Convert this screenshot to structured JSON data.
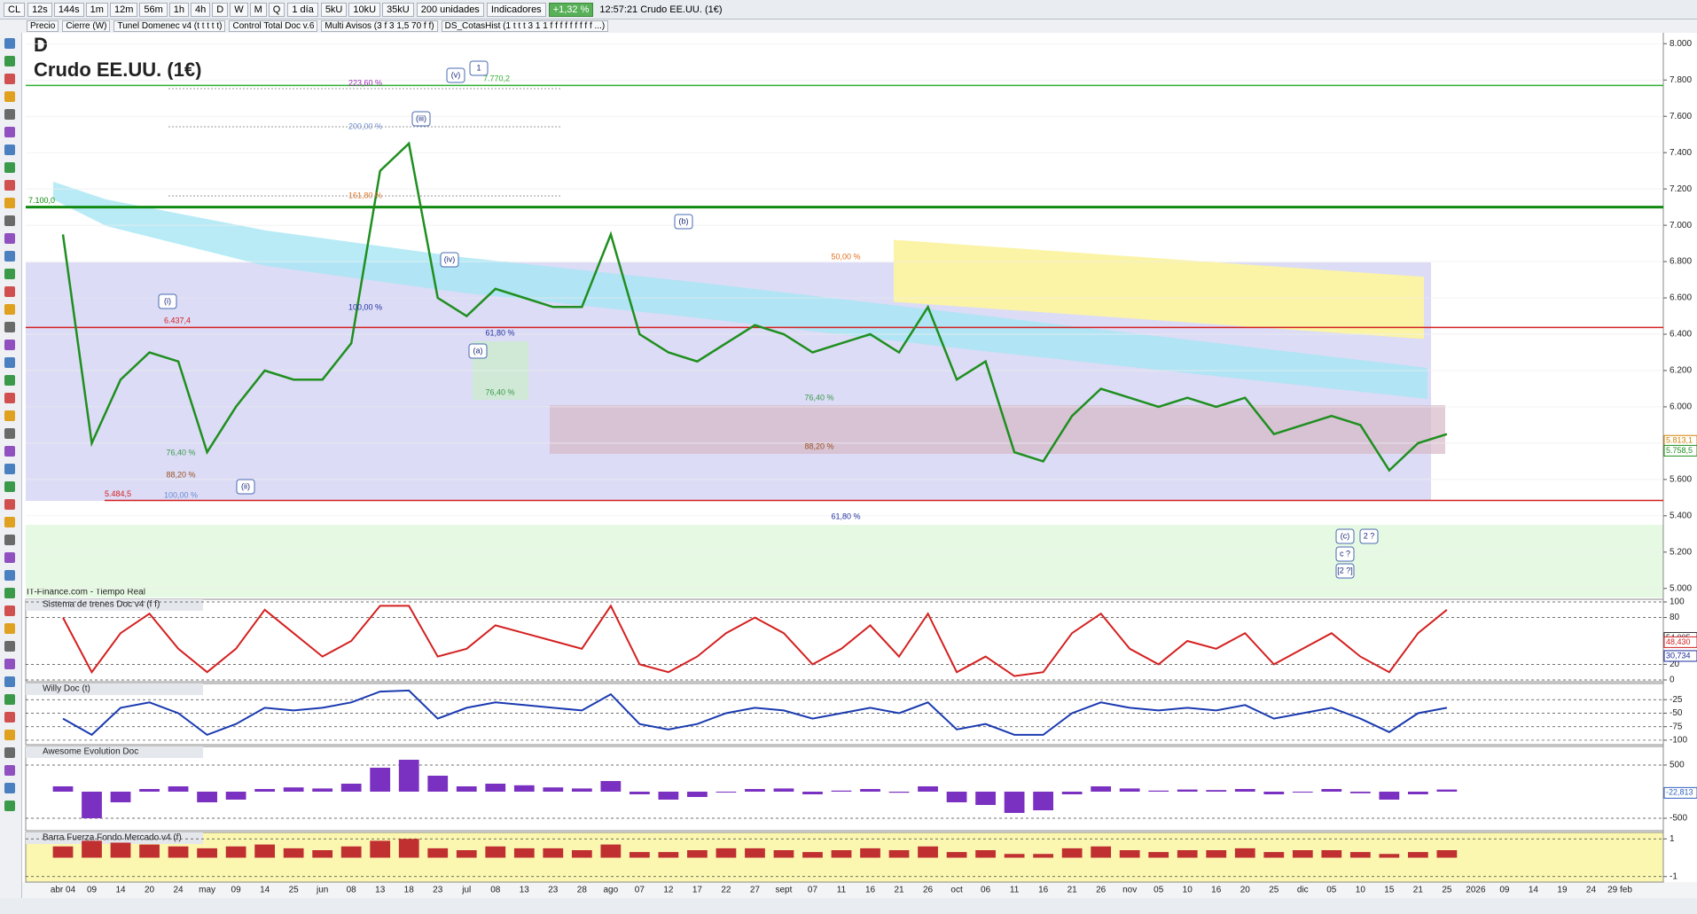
{
  "toolbar": {
    "symbol": "CL",
    "intervals": [
      "12s",
      "144s",
      "1m",
      "12m",
      "56m",
      "1h",
      "4h",
      "D",
      "W",
      "M",
      "Q"
    ],
    "period": "1 día",
    "units": [
      "5kU",
      "10kU",
      "35kU"
    ],
    "amount": "200 unidades",
    "indicators": "Indicadores",
    "change": "+1,32 %",
    "status": "12:57:21 Crudo EE.UU. (1€)"
  },
  "indicator_tabs": [
    "Precio",
    "Cierre (W)",
    "Tunel Domenec v4 (t t t t t)",
    "Control Total Doc v.6",
    "Multi Avisos (3 f 3 1,5 70 f f)",
    "DS_CotasHist (1 t t t 3 1 1 f f f f f f f f f ...)"
  ],
  "chart_data": [
    {
      "type": "line",
      "subtitle": "D",
      "title": "Crudo EE.UU. (1€)",
      "source": "IT-Finance.com - Tiempo Real",
      "color": "#1f8f1f",
      "categories": [
        "abr 04",
        "09",
        "14",
        "20",
        "24",
        "may",
        "09",
        "14",
        "25",
        "jun",
        "08",
        "13",
        "18",
        "23",
        "jul",
        "08",
        "13",
        "23",
        "28",
        "ago",
        "07",
        "12",
        "17",
        "22",
        "27",
        "sept",
        "07",
        "11",
        "16",
        "21",
        "26",
        "oct",
        "06",
        "11",
        "16",
        "21",
        "26",
        "nov",
        "05",
        "10",
        "16",
        "20",
        "25",
        "dic",
        "05",
        "10",
        "15",
        "21",
        "25",
        "2026",
        "09",
        "14",
        "19",
        "24",
        "29 feb"
      ],
      "values": [
        6950,
        5800,
        6150,
        6300,
        6250,
        5750,
        6000,
        6200,
        6150,
        6150,
        6350,
        7300,
        7450,
        6600,
        6500,
        6650,
        6600,
        6550,
        6550,
        6950,
        6400,
        6300,
        6250,
        6350,
        6450,
        6400,
        6300,
        6350,
        6400,
        6300,
        6550,
        6150,
        6250,
        5750,
        5700,
        5950,
        6100,
        6050,
        6000,
        6050,
        6000,
        6050,
        5850,
        5900,
        5950,
        5900,
        5650,
        5800,
        5850,
        null,
        null,
        null,
        null,
        null,
        null
      ],
      "ylim": [
        4950,
        8060
      ],
      "yticks": [
        {
          "value": 5000,
          "label": "5.000"
        },
        {
          "value": 5200,
          "label": "5.200"
        },
        {
          "value": 5400,
          "label": "5.400"
        },
        {
          "value": 5600,
          "label": "5.600"
        },
        {
          "value": 5800,
          "label": "5.800"
        },
        {
          "value": 6000,
          "label": "6.000"
        },
        {
          "value": 6200,
          "label": "6.200"
        },
        {
          "value": 6400,
          "label": "6.400"
        },
        {
          "value": 6600,
          "label": "6.600"
        },
        {
          "value": 6800,
          "label": "6.800"
        },
        {
          "value": 7000,
          "label": "7.000"
        },
        {
          "value": 7200,
          "label": "7.200"
        },
        {
          "value": 7400,
          "label": "7.400"
        },
        {
          "value": 7600,
          "label": "7.600"
        },
        {
          "value": 7800,
          "label": "7.800"
        },
        {
          "value": 8000,
          "label": "8.000"
        }
      ],
      "levels": [
        {
          "value": 7770.2,
          "label": "7.770,2",
          "color": "#2fae2f"
        },
        {
          "value": 7100,
          "label": "7.100,0",
          "color": "#118a11"
        },
        {
          "value": 6437.4,
          "label": "6.437,4",
          "color": "#d42020"
        },
        {
          "value": 5484.5,
          "label": "5.484,5",
          "color": "#d42020"
        }
      ],
      "markers": [
        {
          "value": 5813.1,
          "label": "5.813,1",
          "color": "#d08000"
        },
        {
          "value": 5758.5,
          "label": "5.758,5",
          "color": "#1f8f1f"
        }
      ],
      "fib_labels": [
        "223,60 %",
        "200,00 %",
        "161,80 %",
        "100,00 %",
        "61,80 %",
        "76,40 %",
        "76,40 %",
        "88,20 %",
        "50,00 %",
        "76,40 %",
        "88,20 %",
        "100,00 %",
        "61,80 %"
      ],
      "wave_labels": [
        "(v)",
        "1",
        "(iii)",
        "(iv)",
        "(i)",
        "(ii)",
        "(a)",
        "(b)",
        "(c)",
        "2 ?",
        "c ?",
        "[2 ?]"
      ]
    },
    {
      "type": "line",
      "title": "Sistema de trenes Doc v4 (f f)",
      "color": "#d42020",
      "values": [
        80,
        10,
        60,
        85,
        40,
        10,
        40,
        90,
        60,
        30,
        50,
        95,
        95,
        30,
        40,
        70,
        60,
        50,
        40,
        95,
        20,
        10,
        30,
        60,
        80,
        60,
        20,
        40,
        70,
        30,
        85,
        10,
        30,
        5,
        10,
        60,
        85,
        40,
        20,
        50,
        40,
        60,
        20,
        40,
        60,
        30,
        10,
        60,
        90,
        null,
        null,
        null,
        null,
        null,
        null
      ],
      "ylim": [
        0,
        100
      ],
      "yticks": [
        0,
        20,
        80,
        100
      ],
      "markers": [
        {
          "value": 54.005,
          "label": "54,005",
          "color": "#333333"
        },
        {
          "value": 48.43,
          "label": "48,430",
          "color": "#d42020"
        },
        {
          "value": 30.734,
          "label": "30,734",
          "color": "#1a2a9a"
        }
      ]
    },
    {
      "type": "line",
      "title": "Willy Doc (t)",
      "color": "#1a3ab0",
      "values": [
        -60,
        -90,
        -40,
        -30,
        -50,
        -90,
        -70,
        -40,
        -45,
        -40,
        -30,
        -10,
        -8,
        -60,
        -40,
        -30,
        -35,
        -40,
        -45,
        -15,
        -70,
        -80,
        -70,
        -50,
        -40,
        -45,
        -60,
        -50,
        -40,
        -50,
        -30,
        -80,
        -70,
        -90,
        -90,
        -50,
        -30,
        -40,
        -45,
        -40,
        -45,
        -35,
        -60,
        -50,
        -40,
        -60,
        -85,
        -50,
        -40,
        null,
        null,
        null,
        null,
        null,
        null
      ],
      "ylim": [
        -105,
        0
      ],
      "yticks": [
        -100,
        -75,
        -50,
        -25
      ]
    },
    {
      "type": "bar",
      "title": "Awesome Evolution Doc",
      "color": "#7a30c0",
      "values": [
        100,
        -500,
        -200,
        50,
        100,
        -200,
        -150,
        50,
        80,
        60,
        150,
        450,
        600,
        300,
        100,
        150,
        120,
        80,
        60,
        200,
        -50,
        -150,
        -100,
        0,
        50,
        60,
        -50,
        20,
        50,
        -20,
        100,
        -200,
        -250,
        -400,
        -350,
        -50,
        100,
        60,
        20,
        40,
        30,
        50,
        -50,
        0,
        50,
        -30,
        -150,
        -50,
        40,
        null,
        null,
        null,
        null,
        null,
        null
      ],
      "ylim": [
        -700,
        800
      ],
      "yticks": [
        -500,
        500
      ],
      "markers": [
        {
          "value": -22.813,
          "label": "-22,813",
          "color": "#3060c0"
        }
      ]
    },
    {
      "type": "bar",
      "title": "Barra Fuerza Fondo Mercado v4 (f)",
      "color": "#c03030",
      "values": [
        0.6,
        0.9,
        0.8,
        0.7,
        0.6,
        0.5,
        0.6,
        0.7,
        0.5,
        0.4,
        0.6,
        0.9,
        1,
        0.5,
        0.4,
        0.6,
        0.5,
        0.5,
        0.4,
        0.7,
        0.3,
        0.3,
        0.4,
        0.5,
        0.5,
        0.4,
        0.3,
        0.4,
        0.5,
        0.4,
        0.6,
        0.3,
        0.4,
        0.2,
        0.2,
        0.5,
        0.6,
        0.4,
        0.3,
        0.4,
        0.4,
        0.5,
        0.3,
        0.4,
        0.4,
        0.3,
        0.2,
        0.3,
        0.4,
        null,
        null,
        null,
        null,
        null,
        null
      ],
      "ylim": [
        -1.2,
        1.2
      ],
      "yticks": [
        -1,
        1
      ]
    }
  ]
}
